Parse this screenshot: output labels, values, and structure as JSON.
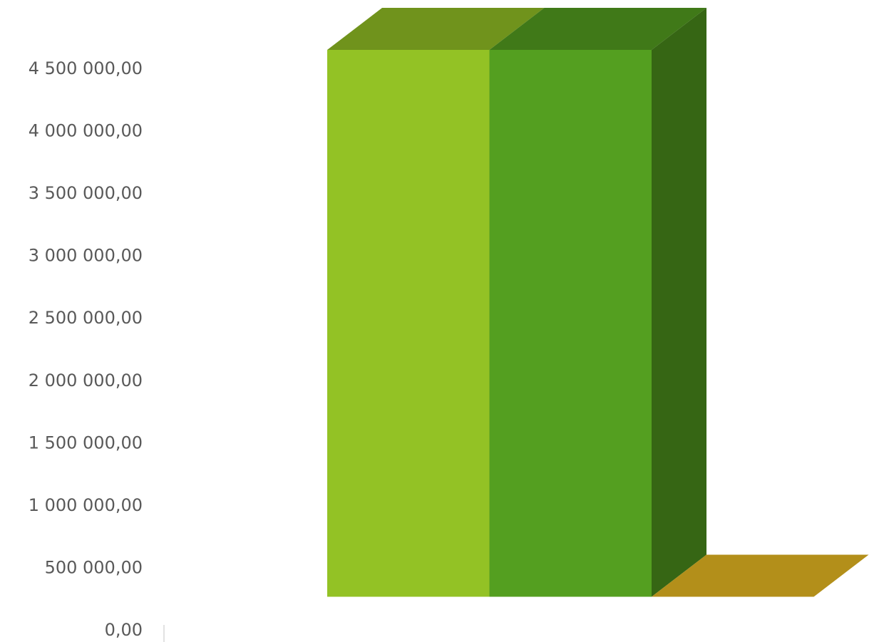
{
  "chart_data": {
    "type": "bar",
    "style": "3d-column",
    "title": "",
    "xlabel": "",
    "ylabel": "",
    "ylim": [
      0,
      4500000
    ],
    "yticks": [
      "0,00",
      "500 000,00",
      "1 000 000,00",
      "1 500 000,00",
      "2 000 000,00",
      "2 500 000,00",
      "3 000 000,00",
      "3 500 000,00",
      "4 000 000,00",
      "4 500 000,00"
    ],
    "grid": false,
    "legend": "none",
    "series": [
      {
        "values": [
          4450000
        ],
        "color": "#93c225"
      },
      {
        "values": [
          4450000
        ],
        "color": "#549f20"
      },
      {
        "values": [
          0
        ],
        "color": "#b38f1a"
      }
    ]
  }
}
